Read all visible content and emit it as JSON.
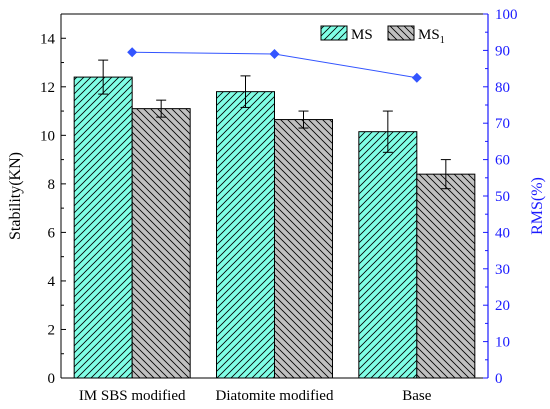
{
  "chart_data": {
    "type": "bar",
    "categories": [
      "IM SBS modified",
      "Diatomite modified",
      "Base"
    ],
    "series": [
      {
        "name": "MS",
        "axis": "left",
        "kind": "bar",
        "values": [
          12.4,
          11.8,
          10.15
        ],
        "errors": [
          0.7,
          0.65,
          0.85
        ],
        "fill": "#80ffe6",
        "hatch": "diagonal-up"
      },
      {
        "name": "MS",
        "name_subscript": "1",
        "axis": "left",
        "kind": "bar",
        "values": [
          11.1,
          10.65,
          8.4
        ],
        "errors": [
          0.35,
          0.35,
          0.6
        ],
        "fill": "#c0c0c0",
        "hatch": "diagonal-down"
      },
      {
        "name": "",
        "axis": "right",
        "kind": "line",
        "marker": "diamond",
        "values": [
          89.5,
          89.0,
          82.5
        ],
        "color": "#3355ff"
      }
    ],
    "left_axis": {
      "label": "Stability(KN)",
      "ylim": [
        0,
        15
      ],
      "ticks": [
        "0",
        "2",
        "4",
        "6",
        "8",
        "10",
        "12",
        "14"
      ],
      "color": "#000000"
    },
    "right_axis": {
      "label": "RMS(%)",
      "ylim": [
        0,
        100
      ],
      "ticks": [
        "0",
        "10",
        "20",
        "30",
        "40",
        "50",
        "60",
        "70",
        "80",
        "90",
        "100"
      ],
      "color": "#1a1aff"
    },
    "legend_position": "top-right",
    "grid": false
  }
}
